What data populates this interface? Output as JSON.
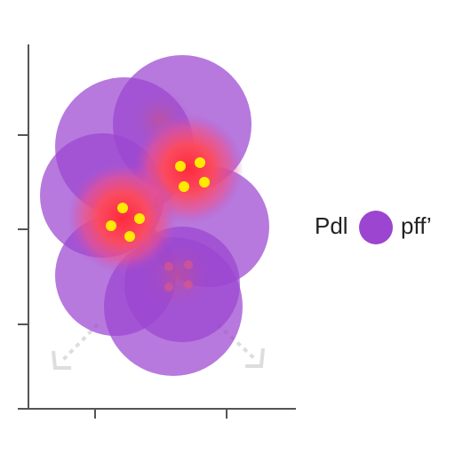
{
  "legend": {
    "left_label": "Pdl",
    "right_label": "pff’"
  }
}
